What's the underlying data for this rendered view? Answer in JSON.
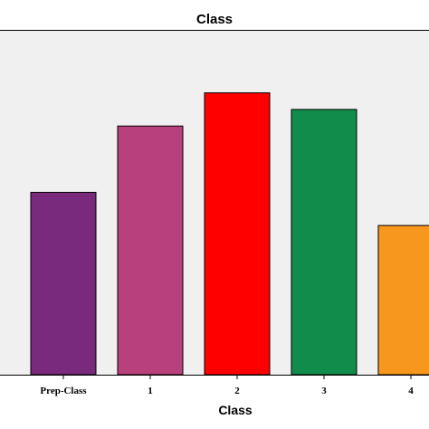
{
  "chart_data": {
    "type": "bar",
    "title": "Class",
    "xlabel": "Class",
    "ylabel": "",
    "categories": [
      "Prep-Class",
      "1",
      "2",
      "3",
      "4"
    ],
    "values": [
      55,
      75,
      85,
      80,
      45
    ],
    "ylim": [
      0,
      104
    ],
    "colors": [
      "#7a2a7c",
      "#b8407c",
      "#ff0000",
      "#118c4a",
      "#f7971e"
    ],
    "grid": false,
    "legend": "none",
    "plot_background": "#f0f0f0"
  }
}
